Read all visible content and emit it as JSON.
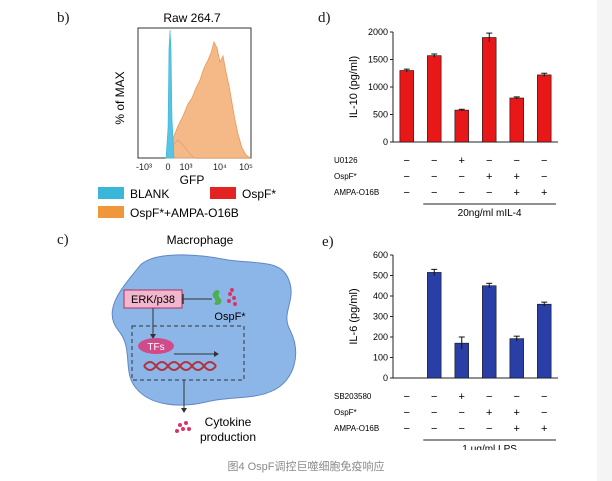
{
  "panels": {
    "b": {
      "letter": "b)",
      "title": "Raw 264.7",
      "xlabel": "GFP",
      "ylabel": "% of MAX",
      "xticks": [
        "-10³",
        "0",
        "10³",
        "10⁴",
        "10⁵"
      ],
      "legend": [
        {
          "label": "BLANK",
          "color": "#3ab6d8"
        },
        {
          "label": "OspF*",
          "color": "#e32222"
        },
        {
          "label": "OspF*+AMPA-O16B",
          "color": "#f0963c"
        }
      ]
    },
    "c": {
      "letter": "c)",
      "cell_label": "Macrophage",
      "kinase_label": "ERK/p38",
      "tf_label": "TFs",
      "effector_label": "OspF*",
      "output_label_line1": "Cytokine",
      "output_label_line2": "production"
    },
    "d": {
      "letter": "d)",
      "condition_rows": [
        {
          "label": "U0126",
          "signs": [
            "−",
            "−",
            "+",
            "−",
            "−",
            "−"
          ]
        },
        {
          "label": "OspF*",
          "signs": [
            "−",
            "−",
            "−",
            "+",
            "+",
            "−"
          ]
        },
        {
          "label": "AMPA-O16B",
          "signs": [
            "−",
            "−",
            "−",
            "−",
            "+",
            "+"
          ]
        }
      ],
      "bracket_label": "20ng/ml mIL-4"
    },
    "e": {
      "letter": "e)",
      "condition_rows": [
        {
          "label": "SB203580",
          "signs": [
            "−",
            "−",
            "+",
            "−",
            "−",
            "−"
          ]
        },
        {
          "label": "OspF*",
          "signs": [
            "−",
            "−",
            "−",
            "+",
            "+",
            "−"
          ]
        },
        {
          "label": "AMPA-O16B",
          "signs": [
            "−",
            "−",
            "−",
            "−",
            "+",
            "+"
          ]
        }
      ],
      "bracket_label": "1 μg/ml LPS"
    }
  },
  "caption": "图4 OspF调控巨噬细胞免疫响应",
  "chart_data": [
    {
      "panel": "d",
      "type": "bar",
      "ylabel": "IL-10 (pg/ml)",
      "ylim": [
        0,
        2000
      ],
      "yticks": [
        "0",
        "500",
        "1000",
        "1500",
        "2000"
      ],
      "values": [
        1300,
        1570,
        580,
        1900,
        800,
        1220
      ],
      "errors": [
        25,
        30,
        15,
        80,
        20,
        30
      ],
      "color": "#e81818"
    },
    {
      "panel": "e",
      "type": "bar",
      "ylabel": "IL-6 (pg/ml)",
      "ylim": [
        0,
        600
      ],
      "yticks": [
        "0",
        "100",
        "200",
        "300",
        "400",
        "500",
        "600"
      ],
      "values": [
        0,
        515,
        170,
        450,
        192,
        360
      ],
      "errors": [
        0,
        15,
        30,
        12,
        12,
        10
      ],
      "color": "#2a3fa6"
    }
  ]
}
